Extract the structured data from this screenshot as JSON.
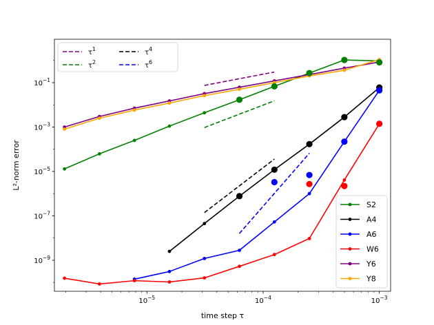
{
  "chart_data": {
    "type": "line",
    "xscale": "log",
    "yscale": "log",
    "xlabel": "time step τ",
    "ylabel": "L²-norm error",
    "xlim": [
      1.6e-06,
      0.00125
    ],
    "ylim": [
      4e-11,
      9.0
    ],
    "x_ticks": [
      {
        "value": 1e-05,
        "base": "10",
        "exp": "−5"
      },
      {
        "value": 0.0001,
        "base": "10",
        "exp": "−4"
      },
      {
        "value": 0.001,
        "base": "10",
        "exp": "−3"
      }
    ],
    "y_ticks": [
      {
        "value": 1e-09,
        "base": "10",
        "exp": "−9"
      },
      {
        "value": 1e-07,
        "base": "10",
        "exp": "−7"
      },
      {
        "value": 1e-05,
        "base": "10",
        "exp": "−5"
      },
      {
        "value": 0.001,
        "base": "10",
        "exp": "−3"
      },
      {
        "value": 0.1,
        "base": "10",
        "exp": "−1"
      }
    ],
    "x": [
      1.953e-06,
      3.906e-06,
      7.8125e-06,
      1.5625e-05,
      3.125e-05,
      6.25e-05,
      0.000125,
      0.00025,
      0.0005,
      0.001
    ],
    "series": [
      {
        "name": "S2",
        "color": "#008000",
        "values": [
          1.3e-05,
          6.2e-05,
          0.00025,
          0.0011,
          0.0044,
          0.017,
          0.068,
          0.27,
          1.05,
          0.95
        ]
      },
      {
        "name": "A4",
        "color": "#000000",
        "values": [
          null,
          null,
          null,
          2.5e-09,
          4.5e-08,
          7.7e-07,
          1.2e-05,
          0.00017,
          0.0028,
          0.06
        ]
      },
      {
        "name": "A6",
        "color": "#0000ff",
        "values": [
          null,
          null,
          1.4e-10,
          3.1e-10,
          1.2e-09,
          2.8e-09,
          5.3e-08,
          1e-06,
          0.00022,
          0.045
        ]
      },
      {
        "name": "W6",
        "color": "#ff0000",
        "values": [
          1.55e-10,
          8.5e-11,
          1.2e-10,
          1.05e-10,
          1.6e-10,
          5.3e-10,
          1.8e-09,
          9.5e-09,
          4.1e-06,
          0.0014
        ]
      },
      {
        "name": "Y6",
        "color": "#800080",
        "values": [
          0.001,
          0.003,
          0.0071,
          0.015,
          0.032,
          0.062,
          0.12,
          0.23,
          0.45,
          0.85
        ]
      },
      {
        "name": "Y8",
        "color": "#ffa500",
        "values": [
          0.0008,
          0.0025,
          0.0058,
          0.012,
          0.026,
          0.05,
          0.1,
          0.2,
          0.36,
          1.1
        ]
      }
    ],
    "markers": [
      {
        "color": "#008000",
        "points": [
          [
            6.25e-05,
            0.017
          ],
          [
            0.000125,
            0.068
          ],
          [
            0.00025,
            0.27
          ],
          [
            0.0005,
            1.05
          ],
          [
            0.001,
            0.82
          ]
        ]
      },
      {
        "color": "#000000",
        "points": [
          [
            6.25e-05,
            7.7e-07
          ],
          [
            0.000125,
            1.2e-05
          ],
          [
            0.00025,
            0.00017
          ],
          [
            0.0005,
            0.0028
          ],
          [
            0.001,
            0.06
          ]
        ]
      },
      {
        "color": "#0000ff",
        "points": [
          [
            0.000125,
            3.3e-06
          ],
          [
            0.00025,
            6.9e-06
          ],
          [
            0.0005,
            0.00022
          ],
          [
            0.001,
            0.045
          ]
        ]
      },
      {
        "color": "#ff0000",
        "points": [
          [
            0.00025,
            2.7e-06
          ],
          [
            0.0005,
            2.2e-06
          ],
          [
            0.001,
            0.0014
          ]
        ]
      }
    ],
    "reference_lines": [
      {
        "name": "τ¹",
        "label_base": "τ",
        "label_exp": "1",
        "color": "#800080",
        "x": [
          3.125e-05,
          0.000125
        ],
        "y": [
          0.075,
          0.3
        ]
      },
      {
        "name": "τ²",
        "label_base": "τ",
        "label_exp": "2",
        "color": "#008000",
        "x": [
          3.125e-05,
          0.000125
        ],
        "y": [
          0.00095,
          0.0152
        ]
      },
      {
        "name": "τ⁴",
        "label_base": "τ",
        "label_exp": "4",
        "color": "#000000",
        "x": [
          3.125e-05,
          0.000125
        ],
        "y": [
          1.4e-07,
          3.6e-05
        ]
      },
      {
        "name": "τ⁶",
        "label_base": "τ",
        "label_exp": "6",
        "color": "#0000ff",
        "x": [
          6.25e-05,
          0.00025
        ],
        "y": [
          1.6e-08,
          6.6e-05
        ]
      }
    ],
    "legend_top_left": {
      "placement": "top-left",
      "entries": [
        "τ¹",
        "τ²",
        "τ⁴",
        "τ⁶"
      ]
    },
    "legend_bottom_right": {
      "placement": "bottom-right",
      "entries": [
        "S2",
        "A4",
        "A6",
        "W6",
        "Y6",
        "Y8"
      ]
    }
  }
}
